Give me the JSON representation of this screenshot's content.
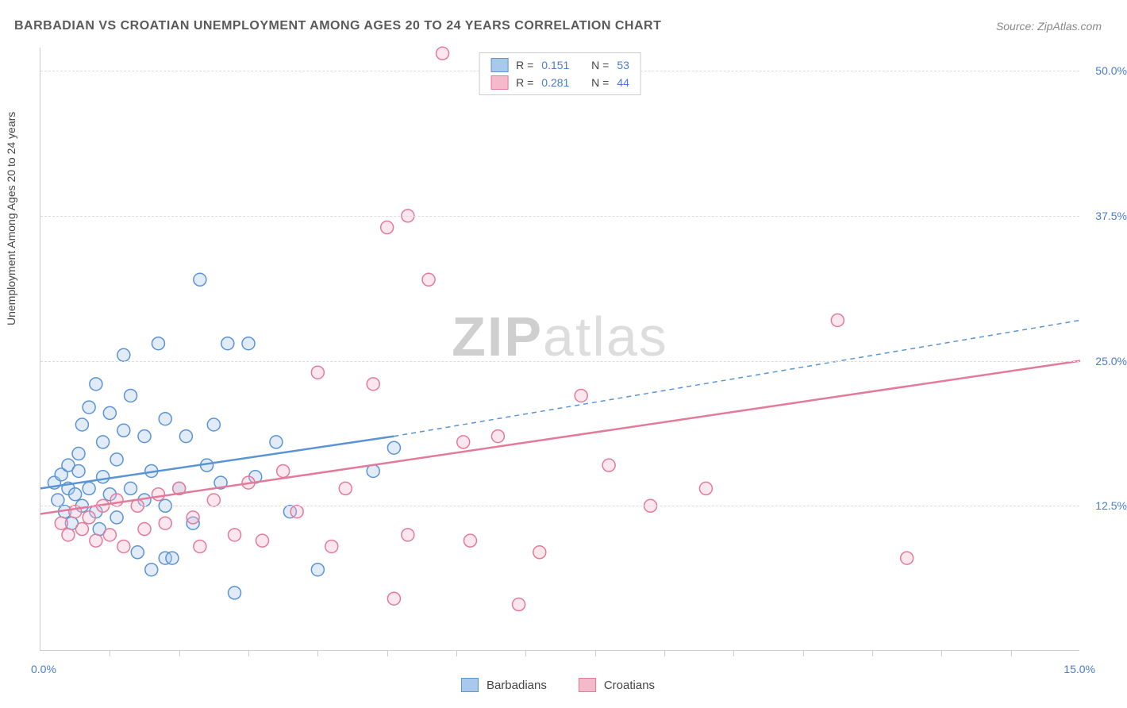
{
  "header": {
    "title": "BARBADIAN VS CROATIAN UNEMPLOYMENT AMONG AGES 20 TO 24 YEARS CORRELATION CHART",
    "source": "Source: ZipAtlas.com"
  },
  "watermark": {
    "prefix": "ZIP",
    "suffix": "atlas"
  },
  "chart": {
    "type": "scatter",
    "ylabel": "Unemployment Among Ages 20 to 24 years",
    "background_color": "#ffffff",
    "grid_color": "#dddddd",
    "axis_color": "#cccccc",
    "tick_label_color": "#4a7bd0",
    "label_color": "#444444",
    "label_fontsize": 14,
    "title_fontsize": 16,
    "xlim": [
      0,
      15
    ],
    "ylim": [
      0,
      52
    ],
    "ytick_values": [
      12.5,
      25.0,
      37.5,
      50.0
    ],
    "ytick_labels": [
      "12.5%",
      "25.0%",
      "37.5%",
      "50.0%"
    ],
    "x_minor_ticks": [
      1,
      2,
      3,
      4,
      5,
      6,
      7,
      8,
      9,
      10,
      11,
      12,
      13,
      14
    ],
    "x_range_labels": {
      "left": "0.0%",
      "right": "15.0%"
    },
    "marker_radius": 8,
    "marker_fill_opacity": 0.35,
    "marker_stroke_width": 1.5,
    "trend_solid_width": 2.5,
    "trend_dash_pattern": "6,5",
    "series": [
      {
        "key": "barbadians",
        "name": "Barbadians",
        "color": "#5a93d6",
        "fill": "#a9c9ec",
        "r_value": "0.151",
        "n_value": "53",
        "trend_solid": {
          "x1": 0,
          "y1": 14.0,
          "x2": 5.1,
          "y2": 18.5
        },
        "trend_dash": {
          "x1": 5.1,
          "y1": 18.5,
          "x2": 15.0,
          "y2": 28.5
        },
        "points": [
          [
            0.2,
            14.5
          ],
          [
            0.25,
            13.0
          ],
          [
            0.3,
            15.2
          ],
          [
            0.35,
            12.0
          ],
          [
            0.4,
            16.0
          ],
          [
            0.4,
            14.0
          ],
          [
            0.45,
            11.0
          ],
          [
            0.5,
            13.5
          ],
          [
            0.55,
            15.5
          ],
          [
            0.55,
            17.0
          ],
          [
            0.6,
            12.5
          ],
          [
            0.6,
            19.5
          ],
          [
            0.7,
            14.0
          ],
          [
            0.7,
            21.0
          ],
          [
            0.8,
            12.0
          ],
          [
            0.8,
            23.0
          ],
          [
            0.85,
            10.5
          ],
          [
            0.9,
            15.0
          ],
          [
            0.9,
            18.0
          ],
          [
            1.0,
            20.5
          ],
          [
            1.0,
            13.5
          ],
          [
            1.1,
            11.5
          ],
          [
            1.1,
            16.5
          ],
          [
            1.2,
            19.0
          ],
          [
            1.2,
            25.5
          ],
          [
            1.3,
            14.0
          ],
          [
            1.3,
            22.0
          ],
          [
            1.4,
            8.5
          ],
          [
            1.5,
            13.0
          ],
          [
            1.5,
            18.5
          ],
          [
            1.6,
            7.0
          ],
          [
            1.6,
            15.5
          ],
          [
            1.7,
            26.5
          ],
          [
            1.8,
            8.0
          ],
          [
            1.8,
            12.5
          ],
          [
            1.8,
            20.0
          ],
          [
            1.9,
            8.0
          ],
          [
            2.0,
            14.0
          ],
          [
            2.1,
            18.5
          ],
          [
            2.2,
            11.0
          ],
          [
            2.3,
            32.0
          ],
          [
            2.4,
            16.0
          ],
          [
            2.5,
            19.5
          ],
          [
            2.6,
            14.5
          ],
          [
            2.7,
            26.5
          ],
          [
            2.8,
            5.0
          ],
          [
            3.0,
            26.5
          ],
          [
            3.1,
            15.0
          ],
          [
            3.4,
            18.0
          ],
          [
            3.6,
            12.0
          ],
          [
            4.0,
            7.0
          ],
          [
            4.8,
            15.5
          ],
          [
            5.1,
            17.5
          ]
        ]
      },
      {
        "key": "croatians",
        "name": "Croatians",
        "color": "#e47a9a",
        "fill": "#f4b9ca",
        "r_value": "0.281",
        "n_value": "44",
        "trend_solid": {
          "x1": 0,
          "y1": 11.8,
          "x2": 15.0,
          "y2": 25.0
        },
        "trend_dash": null,
        "points": [
          [
            0.3,
            11.0
          ],
          [
            0.4,
            10.0
          ],
          [
            0.5,
            12.0
          ],
          [
            0.6,
            10.5
          ],
          [
            0.7,
            11.5
          ],
          [
            0.8,
            9.5
          ],
          [
            0.9,
            12.5
          ],
          [
            1.0,
            10.0
          ],
          [
            1.1,
            13.0
          ],
          [
            1.2,
            9.0
          ],
          [
            1.4,
            12.5
          ],
          [
            1.5,
            10.5
          ],
          [
            1.7,
            13.5
          ],
          [
            1.8,
            11.0
          ],
          [
            2.0,
            14.0
          ],
          [
            2.2,
            11.5
          ],
          [
            2.3,
            9.0
          ],
          [
            2.5,
            13.0
          ],
          [
            2.8,
            10.0
          ],
          [
            3.0,
            14.5
          ],
          [
            3.2,
            9.5
          ],
          [
            3.5,
            15.5
          ],
          [
            3.7,
            12.0
          ],
          [
            4.0,
            24.0
          ],
          [
            4.2,
            9.0
          ],
          [
            4.4,
            14.0
          ],
          [
            4.8,
            23.0
          ],
          [
            5.0,
            36.5
          ],
          [
            5.1,
            4.5
          ],
          [
            5.3,
            10.0
          ],
          [
            5.3,
            37.5
          ],
          [
            5.6,
            32.0
          ],
          [
            5.8,
            51.5
          ],
          [
            6.1,
            18.0
          ],
          [
            6.2,
            9.5
          ],
          [
            6.6,
            18.5
          ],
          [
            6.9,
            4.0
          ],
          [
            7.2,
            8.5
          ],
          [
            7.8,
            22.0
          ],
          [
            8.2,
            16.0
          ],
          [
            8.8,
            12.5
          ],
          [
            9.6,
            14.0
          ],
          [
            11.5,
            28.5
          ],
          [
            12.5,
            8.0
          ]
        ]
      }
    ]
  },
  "stats_legend": {
    "r_label": "R =",
    "n_label": "N ="
  },
  "bottom_legend": {
    "items": [
      "Barbadians",
      "Croatians"
    ]
  }
}
